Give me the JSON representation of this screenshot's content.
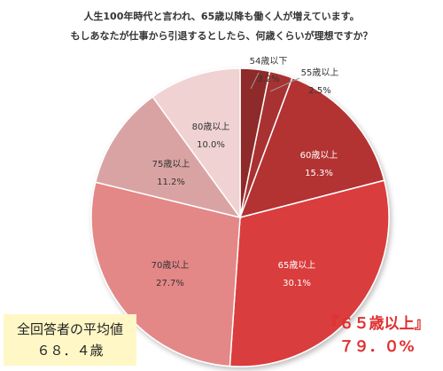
{
  "title": {
    "line1": "人生100年時代と言われ、65歳以降も働く人が増えています。",
    "line2": "もしあなたが仕事から引退するとしたら、何歳くらいが理想ですか？"
  },
  "summary": {
    "average_label": "全回答者の平均値",
    "average_value": "６８．４歳",
    "over65_label": "『６５歳以上』",
    "over65_value": "７９．０%"
  },
  "chart_data": {
    "type": "pie",
    "title": "",
    "start_angle_deg": 0,
    "direction": "clockwise",
    "slices": [
      {
        "label": "54歳以下",
        "value": 3.2,
        "display": "3.2%",
        "color": "#8e2a2a"
      },
      {
        "label": "55歳以上",
        "value": 2.5,
        "display": "2.5%",
        "color": "#a83232"
      },
      {
        "label": "60歳以上",
        "value": 15.3,
        "display": "15.3%",
        "color": "#b33232"
      },
      {
        "label": "65歳以上",
        "value": 30.1,
        "display": "30.1%",
        "color": "#da3d3d"
      },
      {
        "label": "70歳以上",
        "value": 27.7,
        "display": "27.7%",
        "color": "#e48787"
      },
      {
        "label": "75歳以上",
        "value": 11.2,
        "display": "11.2%",
        "color": "#daa3a3"
      },
      {
        "label": "80歳以上",
        "value": 10.0,
        "display": "10.0%",
        "color": "#f0d2d2"
      }
    ]
  }
}
